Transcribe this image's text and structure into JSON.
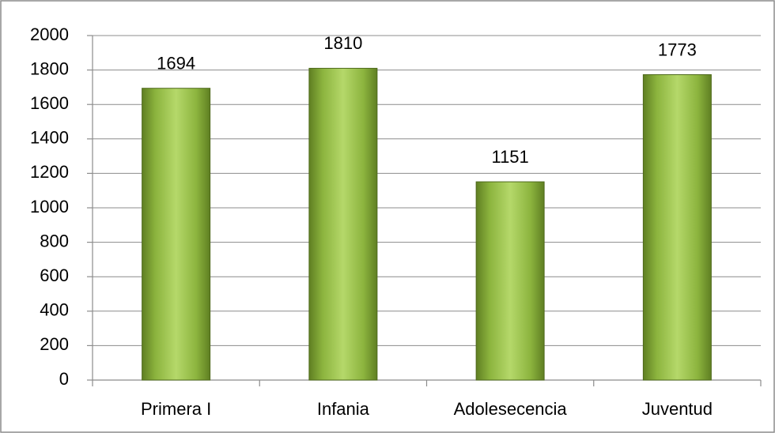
{
  "chart_data": {
    "type": "bar",
    "categories": [
      "Primera I",
      "Infania",
      "Adolesecencia",
      "Juventud"
    ],
    "values": [
      1694,
      1810,
      1151,
      1773
    ],
    "color": "#9bbb59",
    "ylim": [
      0,
      2000
    ],
    "yticks": [
      0,
      200,
      400,
      600,
      800,
      1000,
      1200,
      1400,
      1600,
      1800,
      2000
    ],
    "grid": true
  }
}
